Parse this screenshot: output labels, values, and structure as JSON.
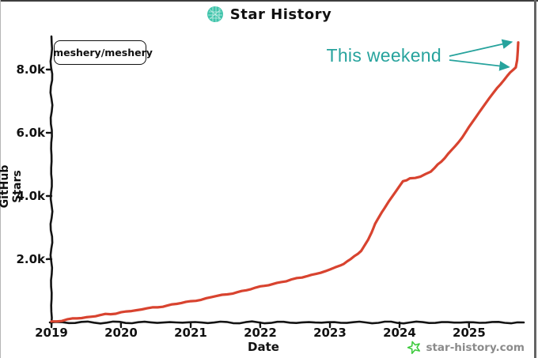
{
  "header": {
    "title": "Star History"
  },
  "legend": {
    "series_label": "meshery/meshery",
    "marker_color": "#d8432f"
  },
  "annotation": {
    "label": "This weekend",
    "color": "#27a39d"
  },
  "watermark": {
    "label": "star-history.com",
    "icon_color": "#3ecb3e",
    "text_color": "#8b8b8b"
  },
  "chart_data": {
    "type": "line",
    "title": "Star History",
    "xlabel": "Date",
    "ylabel": "GitHub Stars",
    "grid": false,
    "legend_position": "top-left",
    "x_range": [
      2019,
      2025.785
    ],
    "y_range": [
      0,
      9050
    ],
    "x_ticks": [
      {
        "value": 2019,
        "label": "2019"
      },
      {
        "value": 2020,
        "label": "2020"
      },
      {
        "value": 2021,
        "label": "2021"
      },
      {
        "value": 2022,
        "label": "2022"
      },
      {
        "value": 2023,
        "label": "2023"
      },
      {
        "value": 2024,
        "label": "2024"
      },
      {
        "value": 2025,
        "label": "2025"
      }
    ],
    "y_ticks": [
      {
        "value": 2000,
        "label": "2.0k"
      },
      {
        "value": 4000,
        "label": "4.0k"
      },
      {
        "value": 6000,
        "label": "6.0k"
      },
      {
        "value": 8000,
        "label": "8.0k"
      }
    ],
    "series": [
      {
        "name": "meshery/meshery",
        "color": "#d8432f",
        "points": [
          [
            2019.0,
            20
          ],
          [
            2019.15,
            60
          ],
          [
            2019.3,
            110
          ],
          [
            2019.5,
            170
          ],
          [
            2019.7,
            230
          ],
          [
            2020.0,
            310
          ],
          [
            2020.3,
            420
          ],
          [
            2020.6,
            510
          ],
          [
            2020.8,
            580
          ],
          [
            2021.0,
            660
          ],
          [
            2021.3,
            800
          ],
          [
            2021.6,
            930
          ],
          [
            2021.8,
            1020
          ],
          [
            2022.0,
            1130
          ],
          [
            2022.3,
            1290
          ],
          [
            2022.6,
            1420
          ],
          [
            2022.8,
            1530
          ],
          [
            2023.0,
            1660
          ],
          [
            2023.15,
            1800
          ],
          [
            2023.3,
            2000
          ],
          [
            2023.45,
            2250
          ],
          [
            2023.55,
            2600
          ],
          [
            2023.65,
            3100
          ],
          [
            2023.75,
            3500
          ],
          [
            2023.85,
            3850
          ],
          [
            2023.95,
            4150
          ],
          [
            2024.05,
            4450
          ],
          [
            2024.15,
            4550
          ],
          [
            2024.3,
            4620
          ],
          [
            2024.45,
            4780
          ],
          [
            2024.6,
            5100
          ],
          [
            2024.75,
            5450
          ],
          [
            2024.9,
            5850
          ],
          [
            2025.0,
            6200
          ],
          [
            2025.1,
            6500
          ],
          [
            2025.25,
            6950
          ],
          [
            2025.4,
            7400
          ],
          [
            2025.55,
            7800
          ],
          [
            2025.63,
            7980
          ],
          [
            2025.67,
            8080
          ],
          [
            2025.69,
            8300
          ],
          [
            2025.7,
            8600
          ],
          [
            2025.705,
            8870
          ]
        ]
      }
    ],
    "annotations": [
      {
        "text": "This weekend",
        "color": "#27a39d",
        "targets": [
          [
            2025.7,
            8870
          ],
          [
            2025.66,
            8080
          ]
        ]
      }
    ]
  }
}
